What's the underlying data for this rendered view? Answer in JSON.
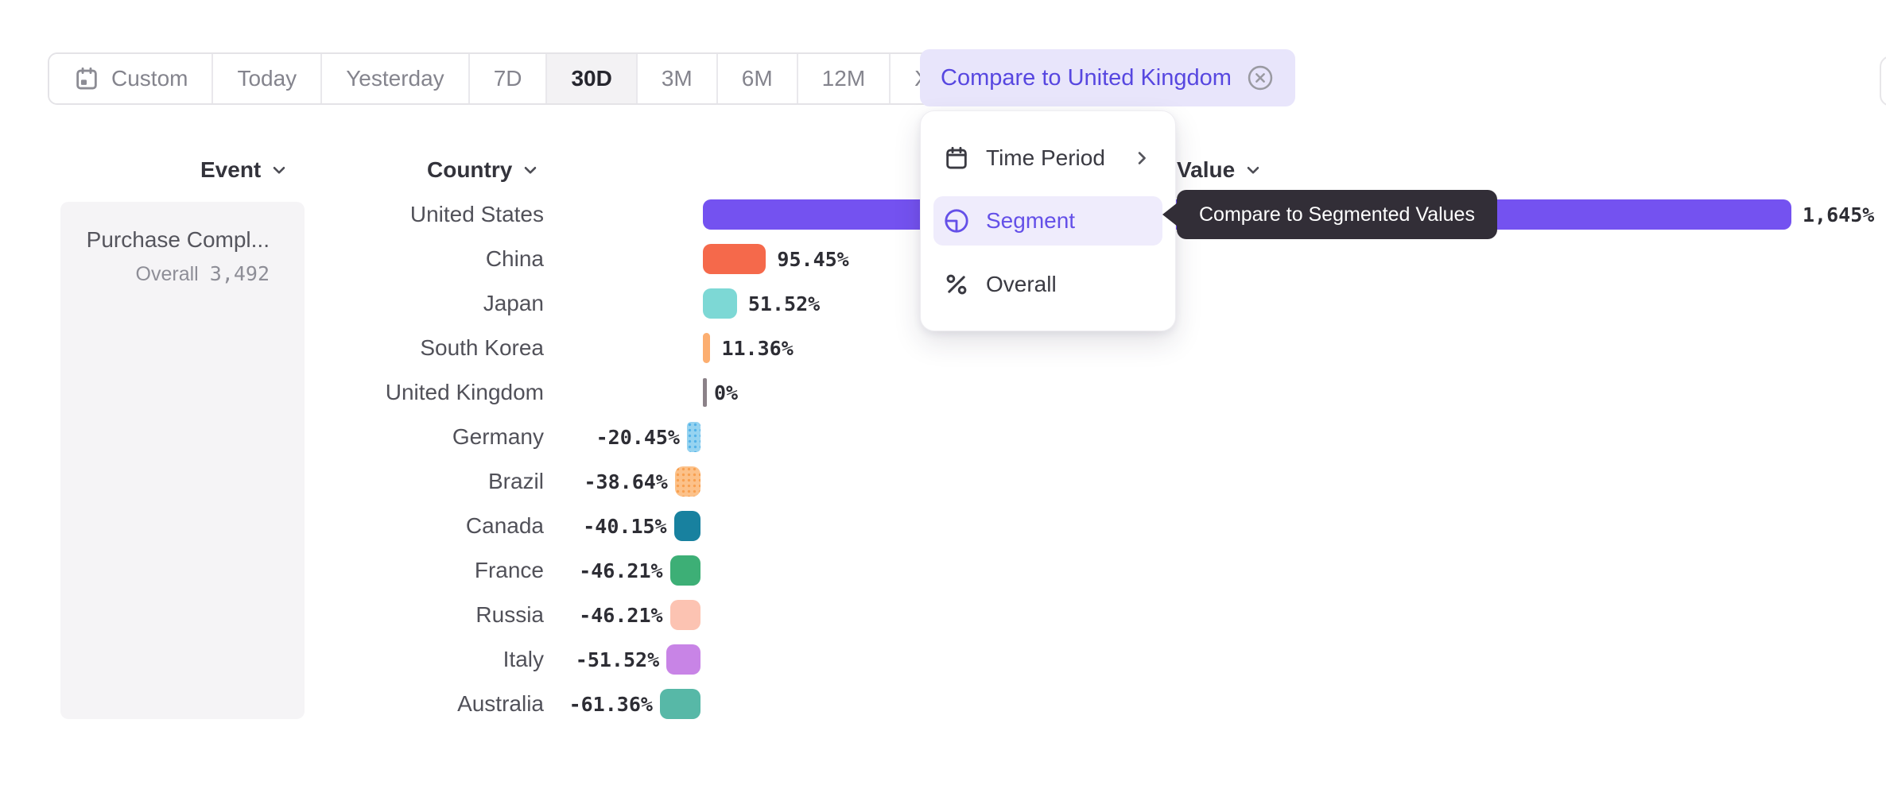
{
  "toolbar": {
    "segments": [
      {
        "label": "Custom",
        "icon": "calendar-custom-icon",
        "selected": false
      },
      {
        "label": "Today",
        "selected": false
      },
      {
        "label": "Yesterday",
        "selected": false
      },
      {
        "label": "7D",
        "selected": false
      },
      {
        "label": "30D",
        "selected": true
      },
      {
        "label": "3M",
        "selected": false
      },
      {
        "label": "6M",
        "selected": false
      },
      {
        "label": "12M",
        "selected": false
      },
      {
        "label": "XTD",
        "icon_right": "chevron-down-icon",
        "selected": false
      }
    ],
    "compare_chip": {
      "label": "Compare to United Kingdom",
      "icon": "x-circle-icon"
    }
  },
  "columns": {
    "event": "Event",
    "country": "Country",
    "value": "Value"
  },
  "event_panel": {
    "title": "Purchase Compl...",
    "metric_label": "Overall",
    "metric_value": "3,492"
  },
  "menu": {
    "items": [
      {
        "label": "Time Period",
        "icon": "calendar-icon",
        "has_submenu": true,
        "selected": false
      },
      {
        "label": "Segment",
        "icon": "segment-pie-icon",
        "has_submenu": false,
        "selected": true
      },
      {
        "label": "Overall",
        "icon": "percent-icon",
        "has_submenu": false,
        "selected": false
      }
    ]
  },
  "tooltip": {
    "text": "Compare to Segmented Values"
  },
  "colors": {
    "accent_purple": "#6450e8",
    "chip_bg": "#e8e5fb",
    "selected_menu_bg": "#efecfc",
    "tooltip_bg": "#322e37",
    "panel_bg": "#f5f4f6",
    "baseline_tick": "#8b8188"
  },
  "chart_data": {
    "type": "bar",
    "orientation": "horizontal",
    "unit": "percent",
    "comparison_baseline": "United Kingdom",
    "categories": [
      "United States",
      "China",
      "Japan",
      "South Korea",
      "United Kingdom",
      "Germany",
      "Brazil",
      "Canada",
      "France",
      "Russia",
      "Italy",
      "Australia"
    ],
    "values": [
      1645,
      95.45,
      51.52,
      11.36,
      0,
      -20.45,
      -38.64,
      -40.15,
      -46.21,
      -46.21,
      -51.52,
      -61.36
    ],
    "series": [
      {
        "label": "United States",
        "value": 1645,
        "display": "1,645%",
        "color": "#7452f0"
      },
      {
        "label": "China",
        "value": 95.45,
        "display": "95.45%",
        "color": "#f5694b"
      },
      {
        "label": "Japan",
        "value": 51.52,
        "display": "51.52%",
        "color": "#7dd8d5"
      },
      {
        "label": "South Korea",
        "value": 11.36,
        "display": "11.36%",
        "color": "#fcae70"
      },
      {
        "label": "United Kingdom",
        "value": 0,
        "display": "0%",
        "color": "#8b8188"
      },
      {
        "label": "Germany",
        "value": -20.45,
        "display": "-20.45%",
        "color": "#96d3f0",
        "pattern": "dots",
        "pattern_color": "#54b3e8"
      },
      {
        "label": "Brazil",
        "value": -38.64,
        "display": "-38.64%",
        "color": "#fcc189",
        "pattern": "dots",
        "pattern_color": "#f8a050"
      },
      {
        "label": "Canada",
        "value": -40.15,
        "display": "-40.15%",
        "color": "#18819f"
      },
      {
        "label": "France",
        "value": -46.21,
        "display": "-46.21%",
        "color": "#3daf76"
      },
      {
        "label": "Russia",
        "value": -46.21,
        "display": "-46.21%",
        "color": "#fcc3b2"
      },
      {
        "label": "Italy",
        "value": -51.52,
        "display": "-51.52%",
        "color": "#c884e6"
      },
      {
        "label": "Australia",
        "value": -61.36,
        "display": "-61.36%",
        "color": "#57b8a7"
      }
    ]
  }
}
